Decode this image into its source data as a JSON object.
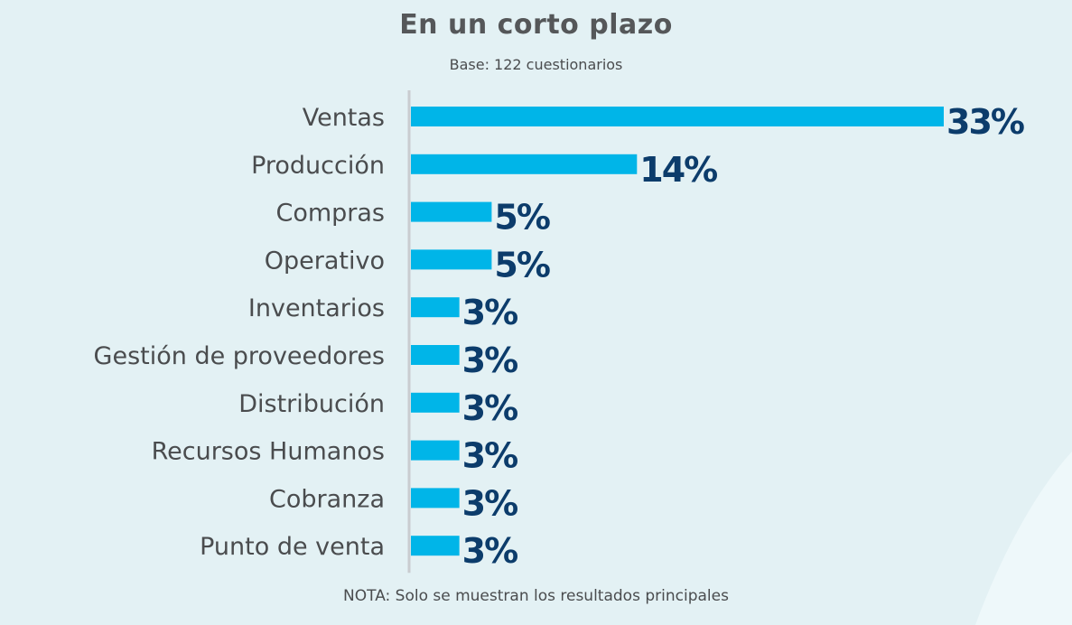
{
  "title": "En un corto plazo",
  "subtitle": "Base: 122 cuestionarios",
  "note": "NOTA: Solo se muestran los resultados principales",
  "colors": {
    "bar": "#00b5e8",
    "value_label": "#0c3c6b",
    "category_label": "#4a4c4e",
    "axis": "#c9cccf",
    "background": "#e3f1f4"
  },
  "chart_data": {
    "type": "bar",
    "orientation": "horizontal",
    "categories": [
      "Ventas",
      "Producción",
      "Compras",
      "Operativo",
      "Inventarios",
      "Gestión de proveedores",
      "Distribución",
      "Recursos Humanos",
      "Cobranza",
      "Punto de venta"
    ],
    "values": [
      33,
      14,
      5,
      5,
      3,
      3,
      3,
      3,
      3,
      3
    ],
    "value_labels": [
      "33%",
      "14%",
      "5%",
      "5%",
      "3%",
      "3%",
      "3%",
      "3%",
      "3%",
      "3%"
    ],
    "unit": "%",
    "xlim": [
      0,
      33
    ],
    "grid": false,
    "legend": "none"
  }
}
